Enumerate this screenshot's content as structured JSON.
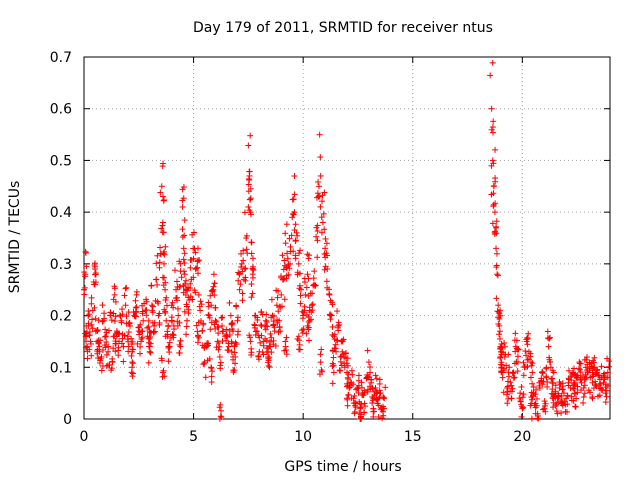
{
  "chart_data": {
    "type": "scatter",
    "title": "Day 179 of 2011, SRMTID for receiver ntus",
    "xlabel": "GPS time / hours",
    "ylabel": "SRMTID / TECUs",
    "xlim": [
      0,
      24
    ],
    "ylim": [
      0,
      0.7
    ],
    "xticks": [
      0,
      5,
      10,
      15,
      20
    ],
    "xtick_labels": [
      "0",
      "5",
      "10",
      "15",
      "20"
    ],
    "yticks": [
      0,
      0.1,
      0.2,
      0.3,
      0.4,
      0.5,
      0.6,
      0.7
    ],
    "ytick_labels": [
      "0",
      "0.1",
      "0.2",
      "0.3",
      "0.4",
      "0.5",
      "0.6",
      "0.7"
    ],
    "grid": true,
    "marker": "plus",
    "color": "#ff0000",
    "series": [
      {
        "name": "SRMTID",
        "x": [
          0.0,
          0.1,
          0.15,
          0.2,
          0.3,
          0.4,
          0.5,
          0.6,
          0.7,
          0.8,
          0.9,
          1.0,
          1.1,
          1.2,
          1.3,
          1.4,
          1.5,
          1.6,
          1.7,
          1.8,
          1.9,
          2.0,
          2.1,
          2.2,
          2.3,
          2.4,
          2.5,
          2.6,
          2.7,
          2.8,
          2.9,
          3.0,
          3.1,
          3.2,
          3.3,
          3.4,
          3.5,
          3.55,
          3.6,
          3.65,
          3.7,
          3.75,
          3.8,
          3.9,
          4.0,
          4.1,
          4.2,
          4.3,
          4.4,
          4.5,
          4.55,
          4.6,
          4.65,
          4.7,
          4.8,
          4.9,
          5.0,
          5.1,
          5.2,
          5.3,
          5.4,
          5.5,
          5.6,
          5.7,
          5.8,
          5.9,
          6.0,
          6.1,
          6.2,
          6.3,
          6.5,
          6.6,
          6.7,
          6.8,
          6.9,
          7.0,
          7.1,
          7.2,
          7.3,
          7.4,
          7.5,
          7.55,
          7.6,
          7.65,
          7.7,
          7.8,
          7.9,
          8.0,
          8.1,
          8.2,
          8.3,
          8.4,
          8.5,
          8.6,
          8.7,
          8.8,
          8.9,
          9.0,
          9.1,
          9.2,
          9.3,
          9.4,
          9.5,
          9.6,
          9.7,
          9.8,
          9.9,
          10.0,
          10.1,
          10.2,
          10.3,
          10.4,
          10.5,
          10.6,
          10.7,
          10.8,
          10.9,
          11.0,
          11.1,
          11.2,
          11.3,
          11.4,
          11.5,
          11.6,
          11.7,
          11.8,
          11.9,
          12.0,
          12.1,
          12.2,
          12.3,
          12.4,
          12.5,
          12.6,
          12.7,
          12.8,
          12.9,
          13.0,
          13.1,
          13.2,
          13.3,
          13.4,
          13.5,
          13.6,
          13.7,
          18.6,
          18.65,
          18.7,
          18.75,
          18.8,
          18.85,
          18.9,
          18.95,
          19.0,
          19.05,
          19.1,
          19.2,
          19.3,
          19.4,
          19.5,
          19.6,
          19.7,
          19.8,
          19.9,
          20.0,
          20.1,
          20.2,
          20.3,
          20.4,
          20.5,
          20.6,
          20.7,
          20.8,
          20.9,
          21.0,
          21.1,
          21.2,
          21.3,
          21.4,
          21.5,
          21.6,
          21.7,
          21.8,
          21.9,
          22.0,
          22.1,
          22.2,
          22.3,
          22.4,
          22.5,
          22.6,
          22.7,
          22.8,
          22.9,
          23.0,
          23.1,
          23.2,
          23.3,
          23.4,
          23.5,
          23.6,
          23.7,
          23.8,
          23.9,
          6.2,
          0.05,
          0.5,
          0.6,
          1.4,
          2.2,
          3.0,
          3.6,
          4.4,
          5.2,
          5.8,
          6.8,
          7.6,
          8.4,
          9.2,
          9.8,
          10.2,
          10.8,
          11.4,
          12.0,
          12.6,
          13.2,
          19.0,
          20.4,
          21.4,
          22.4,
          23.2
        ],
        "y": [
          0.25,
          0.16,
          0.14,
          0.18,
          0.15,
          0.21,
          0.29,
          0.17,
          0.14,
          0.12,
          0.19,
          0.16,
          0.13,
          0.2,
          0.11,
          0.24,
          0.17,
          0.15,
          0.19,
          0.14,
          0.22,
          0.16,
          0.18,
          0.13,
          0.2,
          0.24,
          0.17,
          0.15,
          0.19,
          0.21,
          0.16,
          0.14,
          0.22,
          0.18,
          0.27,
          0.2,
          0.32,
          0.45,
          0.38,
          0.3,
          0.25,
          0.19,
          0.16,
          0.14,
          0.22,
          0.18,
          0.25,
          0.2,
          0.3,
          0.41,
          0.33,
          0.28,
          0.24,
          0.19,
          0.23,
          0.27,
          0.31,
          0.29,
          0.33,
          0.21,
          0.17,
          0.11,
          0.14,
          0.2,
          0.22,
          0.25,
          0.19,
          0.15,
          0.12,
          0.18,
          0.16,
          0.14,
          0.2,
          0.17,
          0.12,
          0.19,
          0.25,
          0.3,
          0.27,
          0.35,
          0.41,
          0.47,
          0.4,
          0.32,
          0.28,
          0.2,
          0.17,
          0.13,
          0.18,
          0.15,
          0.19,
          0.12,
          0.14,
          0.2,
          0.17,
          0.22,
          0.19,
          0.24,
          0.27,
          0.34,
          0.31,
          0.3,
          0.39,
          0.4,
          0.36,
          0.3,
          0.25,
          0.2,
          0.24,
          0.28,
          0.19,
          0.22,
          0.26,
          0.37,
          0.43,
          0.47,
          0.38,
          0.33,
          0.29,
          0.24,
          0.2,
          0.16,
          0.13,
          0.18,
          0.12,
          0.15,
          0.1,
          0.09,
          0.06,
          0.07,
          0.04,
          0.03,
          0.06,
          0.02,
          0.05,
          0.03,
          0.08,
          0.11,
          0.07,
          0.04,
          0.06,
          0.03,
          0.05,
          0.02,
          0.04,
          0.6,
          0.5,
          0.45,
          0.4,
          0.33,
          0.28,
          0.22,
          0.18,
          0.14,
          0.1,
          0.08,
          0.12,
          0.06,
          0.1,
          0.04,
          0.09,
          0.14,
          0.11,
          0.05,
          0.02,
          0.1,
          0.15,
          0.13,
          0.11,
          0.05,
          0.03,
          0.01,
          0.06,
          0.09,
          0.02,
          0.08,
          0.14,
          0.1,
          0.07,
          0.05,
          0.04,
          0.06,
          0.03,
          0.05,
          0.04,
          0.07,
          0.06,
          0.09,
          0.05,
          0.08,
          0.11,
          0.07,
          0.06,
          0.1,
          0.09,
          0.08,
          0.07,
          0.1,
          0.09,
          0.06,
          0.08,
          0.07,
          0.05,
          0.09,
          0.0,
          0.28,
          0.26,
          0.15,
          0.16,
          0.11,
          0.13,
          0.09,
          0.14,
          0.16,
          0.1,
          0.12,
          0.15,
          0.13,
          0.14,
          0.16,
          0.18,
          0.11,
          0.09,
          0.04,
          0.0,
          0.02,
          0.12,
          0.03,
          0.04,
          0.07,
          0.09
        ]
      }
    ]
  }
}
